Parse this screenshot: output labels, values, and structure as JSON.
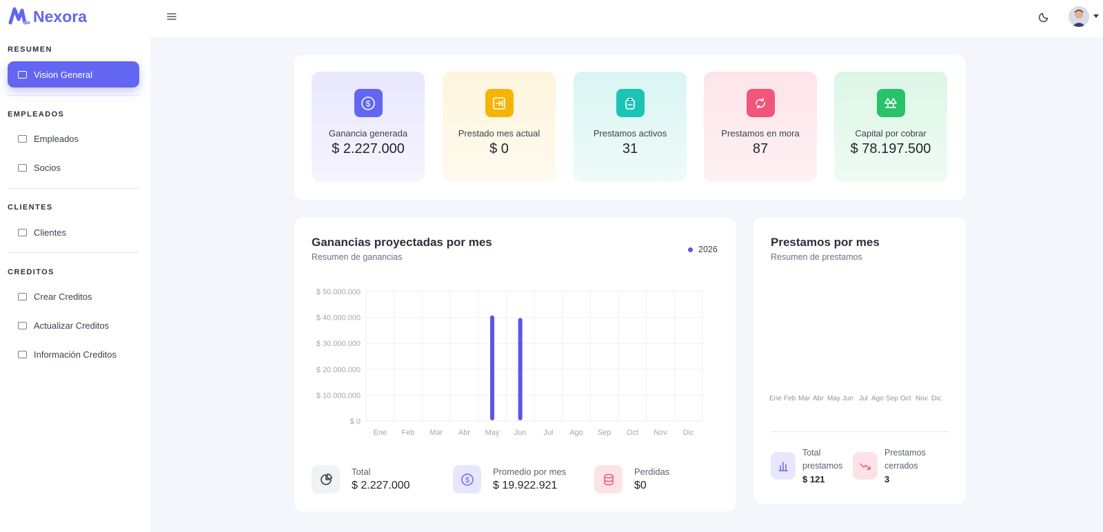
{
  "brand": {
    "name": "Nexora"
  },
  "sidebar": {
    "sections": [
      {
        "title": "RESUMEN"
      },
      {
        "title": "EMPLEADOS"
      },
      {
        "title": "CLIENTES"
      },
      {
        "title": "CREDITOS"
      }
    ],
    "items": [
      {
        "label": "Vision General",
        "active": true
      },
      {
        "label": "Empleados"
      },
      {
        "label": "Socios"
      },
      {
        "label": "Clientes"
      },
      {
        "label": "Crear Creditos"
      },
      {
        "label": "Actualizar Creditos"
      },
      {
        "label": "Información Creditos"
      }
    ]
  },
  "stats": [
    {
      "label": "Ganancia generada",
      "value": "$ 2.227.000",
      "icon": "dollar-circle-icon",
      "color": "#6366f1"
    },
    {
      "label": "Prestado mes actual",
      "value": "$ 0",
      "icon": "transfer-icon",
      "color": "#f5b507"
    },
    {
      "label": "Prestamos activos",
      "value": "31",
      "icon": "backpack-icon",
      "color": "#1cc4b8"
    },
    {
      "label": "Prestamos en mora",
      "value": "87",
      "icon": "refresh-alert-icon",
      "color": "#f2557a"
    },
    {
      "label": "Capital por cobrar",
      "value": "$ 78.197.500",
      "icon": "trees-icon",
      "color": "#27c26a"
    }
  ],
  "earnings": {
    "title": "Ganancias proyectadas por mes",
    "subtitle": "Resumen de ganancias",
    "legend": "2026",
    "totals": [
      {
        "label": "Total",
        "value": "$ 2.227.000",
        "icon": "pie-chart-icon"
      },
      {
        "label": "Promedio por mes",
        "value": "$ 19.922.921",
        "icon": "dollar-circle-icon"
      },
      {
        "label": "Perdidas",
        "value": "$0",
        "icon": "database-icon"
      }
    ]
  },
  "loans": {
    "title": "Prestamos por mes",
    "subtitle": "Resumen de prestamos",
    "months": [
      "Ene",
      "Feb",
      "Mar",
      "Abr",
      "May",
      "Jun",
      "Jul",
      "Ago",
      "Sep",
      "Oct",
      "Nov",
      "Dic"
    ],
    "totals": [
      {
        "label": "Total prestamos",
        "value": "$ 121",
        "icon": "bar-chart-icon"
      },
      {
        "label": "Prestamos cerrados",
        "value": "3",
        "icon": "trending-down-icon"
      }
    ]
  },
  "chart_data": {
    "type": "bar",
    "title": "Ganancias proyectadas por mes",
    "categories": [
      "Ene",
      "Feb",
      "Mar",
      "Abr",
      "May",
      "Jun",
      "Jul",
      "Ago",
      "Sep",
      "Oct",
      "Nov",
      "Dic"
    ],
    "series": [
      {
        "name": "2026",
        "values": [
          0,
          0,
          0,
          0,
          40000000,
          39000000,
          0,
          0,
          0,
          0,
          0,
          0
        ]
      }
    ],
    "y_ticks": [
      "$ 0",
      "$ 10.000.000",
      "$ 20.000.000",
      "$ 30.000.000",
      "$ 40.000.000",
      "$ 50.000.000"
    ],
    "ylim": [
      0,
      50000000
    ],
    "grid": true,
    "legend": "top-right",
    "color": "#5b55e8"
  }
}
